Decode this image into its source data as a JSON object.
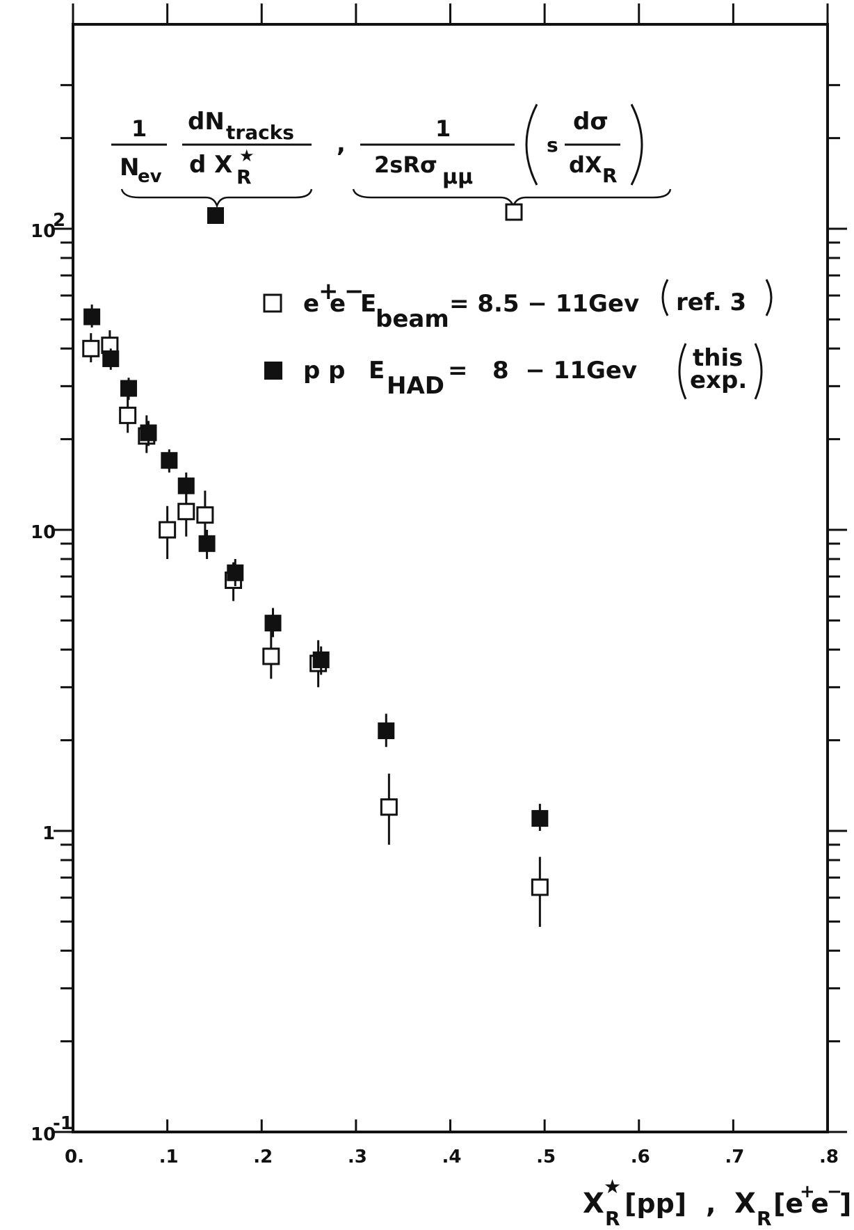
{
  "chart_data": {
    "type": "scatter",
    "title": "",
    "x_axis": {
      "label": "X_R^*[pp] , X_R[e+e-]",
      "label_parts": [
        "X",
        "R",
        "★",
        "[pp]",
        ",",
        "X",
        "R",
        "[e",
        "+",
        "e",
        "−",
        "]"
      ],
      "range": [
        0,
        0.8
      ],
      "tick_values": [
        0,
        0.1,
        0.2,
        0.3,
        0.4,
        0.5,
        0.6,
        0.7,
        0.8
      ],
      "tick_labels": [
        "0.",
        ".1",
        ".2",
        ".3",
        ".4",
        ".5",
        ".6",
        ".7",
        ".8"
      ]
    },
    "y_axis": {
      "scale": "log",
      "range": [
        0.1,
        300
      ],
      "tick_values": [
        0.1,
        1,
        10,
        100
      ],
      "tick_labels": [
        {
          "base": "10",
          "exp": "-1"
        },
        {
          "base": "1",
          "exp": ""
        },
        {
          "base": "10",
          "exp": ""
        },
        {
          "base": "10",
          "exp": "2"
        }
      ]
    },
    "formula_left": {
      "numerator_1": "1",
      "denominator_1": "N",
      "denominator_1_sub": "ev",
      "numerator_2": "dN",
      "numerator_2_sub": "tracks",
      "denominator_2": "d X",
      "denominator_2_sub": "R",
      "denominator_2_sup": "★"
    },
    "formula_right": {
      "numerator_1": "1",
      "denominator_1": "2sRσ",
      "denominator_1_sub": "μμ",
      "prefix": "s",
      "numerator_2": "dσ",
      "denominator_2": "dX",
      "denominator_2_sub": "R"
    },
    "legend": {
      "placement": "top-right",
      "entries": [
        {
          "marker": "open-square",
          "particles": "e",
          "particles_sup1": "+",
          "particles_mid": "e",
          "particles_sup2": "−",
          "energy": "E",
          "energy_sub": "beam",
          "equation": "= 8.5 − 11Gev",
          "note": "ref. 3"
        },
        {
          "marker": "filled-square",
          "particles": "p p",
          "energy": "E",
          "energy_sub": "HAD",
          "equation": "=   8  − 11Gev",
          "note_line1": "this",
          "note_line2": "exp."
        }
      ]
    },
    "series": [
      {
        "marker": "open-square",
        "points": [
          {
            "x": 0.019,
            "y": 40,
            "lo": 36,
            "hi": 45
          },
          {
            "x": 0.039,
            "y": 41,
            "lo": 38,
            "hi": 46
          },
          {
            "x": 0.058,
            "y": 24,
            "lo": 21,
            "hi": 28
          },
          {
            "x": 0.078,
            "y": 20.5,
            "lo": 18,
            "hi": 24
          },
          {
            "x": 0.1,
            "y": 10,
            "lo": 8,
            "hi": 12
          },
          {
            "x": 0.12,
            "y": 11.5,
            "lo": 9.5,
            "hi": 14
          },
          {
            "x": 0.14,
            "y": 11.2,
            "lo": 9.5,
            "hi": 13.5
          },
          {
            "x": 0.17,
            "y": 6.8,
            "lo": 5.8,
            "hi": 7.8
          },
          {
            "x": 0.21,
            "y": 3.8,
            "lo": 3.2,
            "hi": 4.6
          },
          {
            "x": 0.26,
            "y": 3.6,
            "lo": 3.0,
            "hi": 4.3
          },
          {
            "x": 0.335,
            "y": 1.2,
            "lo": 0.9,
            "hi": 1.55
          },
          {
            "x": 0.495,
            "y": 0.65,
            "lo": 0.48,
            "hi": 0.82
          }
        ]
      },
      {
        "marker": "filled-square",
        "points": [
          {
            "x": 0.02,
            "y": 51,
            "lo": 47,
            "hi": 56
          },
          {
            "x": 0.04,
            "y": 37,
            "lo": 34,
            "hi": 40
          },
          {
            "x": 0.059,
            "y": 29.5,
            "lo": 27,
            "hi": 32
          },
          {
            "x": 0.08,
            "y": 21,
            "lo": 19,
            "hi": 23
          },
          {
            "x": 0.102,
            "y": 17,
            "lo": 15.5,
            "hi": 18.5
          },
          {
            "x": 0.12,
            "y": 14,
            "lo": 12.5,
            "hi": 15.5
          },
          {
            "x": 0.142,
            "y": 9,
            "lo": 8,
            "hi": 10
          },
          {
            "x": 0.172,
            "y": 7.2,
            "lo": 6.5,
            "hi": 8
          },
          {
            "x": 0.212,
            "y": 4.9,
            "lo": 4.4,
            "hi": 5.5
          },
          {
            "x": 0.263,
            "y": 3.7,
            "lo": 3.3,
            "hi": 4.1
          },
          {
            "x": 0.332,
            "y": 2.15,
            "lo": 1.9,
            "hi": 2.45
          },
          {
            "x": 0.495,
            "y": 1.1,
            "lo": 1.0,
            "hi": 1.23
          }
        ]
      }
    ],
    "colors": {
      "ink": "#111111",
      "background": "#ffffff"
    }
  }
}
